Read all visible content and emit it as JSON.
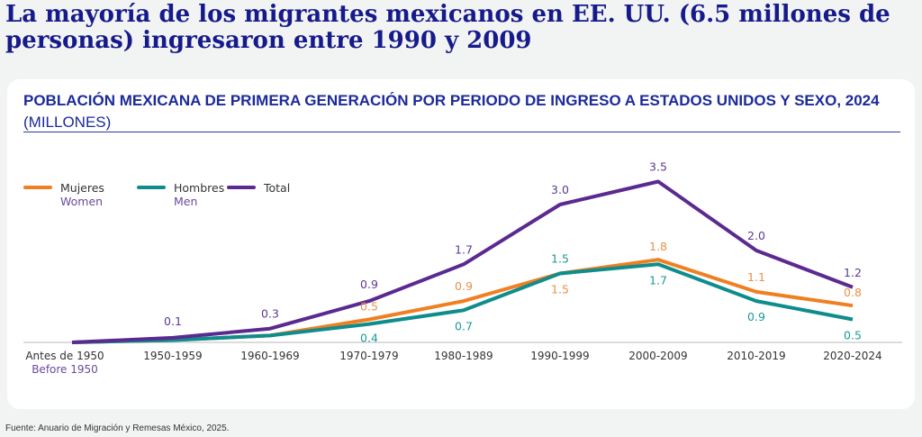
{
  "headline": "La mayoría de los migrantes mexicanos en EE. UU. (6.5 millones de personas) ingresaron entre 1990 y 2009",
  "chart_data": {
    "type": "line",
    "title": "POBLACIÓN MEXICANA DE PRIMERA GENERACIÓN POR PERIODO DE INGRESO A ESTADOS UNIDOS Y SEXO, 2024",
    "title_unit": "(MILLONES)",
    "categories": [
      "Antes de 1950",
      "1950-1959",
      "1960-1969",
      "1970-1979",
      "1980-1989",
      "1990-1999",
      "2000-2009",
      "2010-2019",
      "2020-2024"
    ],
    "category_sublabels": [
      "Before 1950",
      "",
      "",
      "",
      "",
      "",
      "",
      "",
      ""
    ],
    "ylim": [
      0,
      3.5
    ],
    "grid": false,
    "legend_position": "top-left",
    "series": [
      {
        "name": "Mujeres",
        "name_en": "Women",
        "color": "#f07f22",
        "values": [
          0,
          0.05,
          0.15,
          0.5,
          0.9,
          1.5,
          1.8,
          1.1,
          0.8
        ],
        "labels": [
          "",
          "",
          "",
          "0.5",
          "0.9",
          "1.5",
          "1.8",
          "1.1",
          "0.8"
        ]
      },
      {
        "name": "Hombres",
        "name_en": "Men",
        "color": "#0f8c8c",
        "values": [
          0,
          0.05,
          0.15,
          0.4,
          0.7,
          1.5,
          1.7,
          0.9,
          0.5
        ],
        "labels": [
          "",
          "",
          "",
          "0.4",
          "0.7",
          "1.5",
          "1.7",
          "0.9",
          "0.5"
        ]
      },
      {
        "name": "Total",
        "name_en": "",
        "color": "#5b2a91",
        "values": [
          0,
          0.1,
          0.3,
          0.9,
          1.7,
          3.0,
          3.5,
          2.0,
          1.2
        ],
        "labels": [
          "",
          "0.1",
          "0.3",
          "0.9",
          "1.7",
          "3.0",
          "3.5",
          "2.0",
          "1.2"
        ]
      }
    ]
  },
  "source": "Fuente: Anuario de Migración y Remesas México, 2025."
}
